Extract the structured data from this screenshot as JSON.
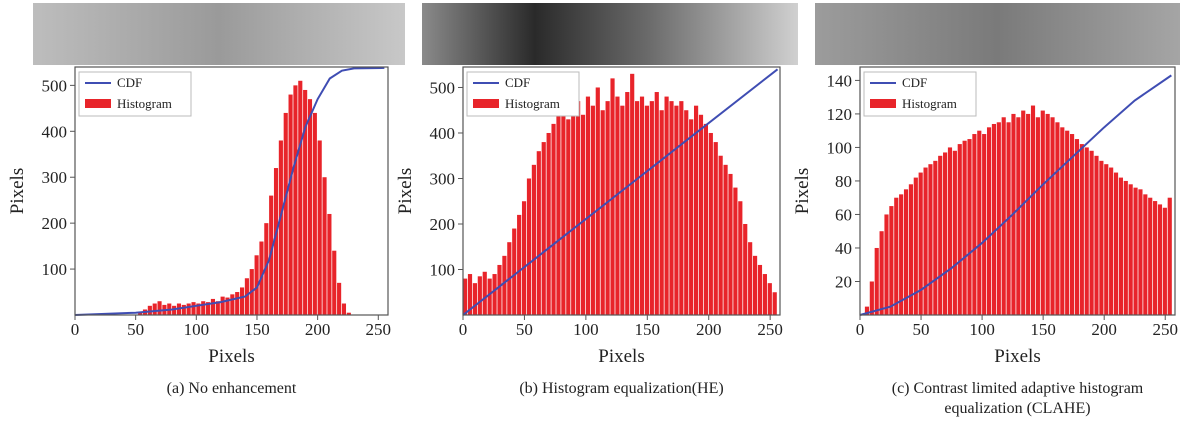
{
  "chart_data": [
    {
      "type": "histogram",
      "caption": [
        "(a) No enhancement"
      ],
      "xlabel": "Pixels",
      "ylabel": "Pixels",
      "xlim": [
        0,
        258
      ],
      "xticks": [
        0,
        50,
        100,
        150,
        200,
        250
      ],
      "ylim": [
        0,
        540
      ],
      "yticks": [
        100,
        200,
        300,
        400,
        500
      ],
      "histogram": {
        "name": "Histogram",
        "color": "#e8242a",
        "bins": [
          0,
          4,
          8,
          12,
          16,
          20,
          24,
          28,
          32,
          36,
          40,
          44,
          48,
          52,
          56,
          60,
          64,
          68,
          72,
          76,
          80,
          84,
          88,
          92,
          96,
          100,
          104,
          108,
          112,
          116,
          120,
          124,
          128,
          132,
          136,
          140,
          144,
          148,
          152,
          156,
          160,
          164,
          168,
          172,
          176,
          180,
          184,
          188,
          192,
          196,
          200,
          204,
          208,
          212,
          216,
          220,
          224,
          228,
          232,
          236,
          240,
          244,
          248,
          252,
          256
        ],
        "counts": [
          0,
          0,
          0,
          0,
          0,
          0,
          0,
          0,
          0,
          0,
          0,
          0,
          0,
          5,
          12,
          20,
          25,
          30,
          22,
          25,
          20,
          25,
          22,
          25,
          28,
          25,
          30,
          28,
          35,
          30,
          40,
          38,
          45,
          50,
          60,
          80,
          100,
          130,
          160,
          200,
          260,
          320,
          380,
          440,
          480,
          500,
          510,
          490,
          470,
          440,
          380,
          300,
          220,
          140,
          70,
          25,
          5,
          0,
          0,
          0,
          0,
          0,
          0,
          0
        ]
      },
      "line": {
        "name": "CDF",
        "color": "#3f4db3",
        "x": [
          0,
          50,
          80,
          100,
          120,
          140,
          150,
          160,
          170,
          180,
          190,
          200,
          210,
          220,
          230,
          255
        ],
        "values": [
          0,
          5,
          12,
          20,
          28,
          40,
          60,
          120,
          220,
          320,
          410,
          470,
          515,
          532,
          537,
          538
        ]
      }
    },
    {
      "type": "histogram",
      "caption": [
        "(b) Histogram equalization(HE)"
      ],
      "xlabel": "Pixels",
      "ylabel": "Pixels",
      "xlim": [
        0,
        258
      ],
      "xticks": [
        0,
        50,
        100,
        150,
        200,
        250
      ],
      "ylim": [
        0,
        545
      ],
      "yticks": [
        100,
        200,
        300,
        400,
        500
      ],
      "histogram": {
        "name": "Histogram",
        "color": "#e8242a",
        "bins": [
          0,
          4,
          8,
          12,
          16,
          20,
          24,
          28,
          32,
          36,
          40,
          44,
          48,
          52,
          56,
          60,
          64,
          68,
          72,
          76,
          80,
          84,
          88,
          92,
          96,
          100,
          104,
          108,
          112,
          116,
          120,
          124,
          128,
          132,
          136,
          140,
          144,
          148,
          152,
          156,
          160,
          164,
          168,
          172,
          176,
          180,
          184,
          188,
          192,
          196,
          200,
          204,
          208,
          212,
          216,
          220,
          224,
          228,
          232,
          236,
          240,
          244,
          248,
          252,
          256
        ],
        "counts": [
          80,
          90,
          70,
          85,
          95,
          80,
          90,
          110,
          130,
          160,
          190,
          220,
          250,
          300,
          330,
          360,
          380,
          400,
          420,
          440,
          450,
          430,
          460,
          470,
          440,
          480,
          460,
          500,
          450,
          470,
          520,
          480,
          460,
          490,
          530,
          470,
          480,
          460,
          470,
          490,
          450,
          480,
          470,
          460,
          470,
          450,
          430,
          460,
          440,
          420,
          400,
          380,
          350,
          330,
          310,
          280,
          250,
          200,
          160,
          130,
          110,
          90,
          70,
          50
        ]
      },
      "line": {
        "name": "CDF",
        "color": "#3f4db3",
        "x": [
          0,
          64,
          128,
          192,
          256
        ],
        "values": [
          0,
          135,
          270,
          405,
          540
        ]
      }
    },
    {
      "type": "histogram",
      "caption": [
        "(c) Contrast limited adaptive histogram",
        "equalization (CLAHE)"
      ],
      "xlabel": "Pixels",
      "ylabel": "Pixels",
      "xlim": [
        0,
        258
      ],
      "xticks": [
        0,
        50,
        100,
        150,
        200,
        250
      ],
      "ylim": [
        0,
        148
      ],
      "yticks": [
        20,
        40,
        60,
        80,
        100,
        120,
        140
      ],
      "histogram": {
        "name": "Histogram",
        "color": "#e8242a",
        "bins": [
          0,
          4,
          8,
          12,
          16,
          20,
          24,
          28,
          32,
          36,
          40,
          44,
          48,
          52,
          56,
          60,
          64,
          68,
          72,
          76,
          80,
          84,
          88,
          92,
          96,
          100,
          104,
          108,
          112,
          116,
          120,
          124,
          128,
          132,
          136,
          140,
          144,
          148,
          152,
          156,
          160,
          164,
          168,
          172,
          176,
          180,
          184,
          188,
          192,
          196,
          200,
          204,
          208,
          212,
          216,
          220,
          224,
          228,
          232,
          236,
          240,
          244,
          248,
          252,
          256
        ],
        "counts": [
          0,
          5,
          20,
          40,
          50,
          60,
          65,
          70,
          72,
          75,
          78,
          82,
          85,
          88,
          90,
          92,
          95,
          97,
          100,
          98,
          102,
          104,
          105,
          108,
          110,
          108,
          112,
          114,
          115,
          118,
          115,
          120,
          118,
          122,
          120,
          125,
          118,
          122,
          120,
          118,
          115,
          112,
          110,
          108,
          105,
          102,
          100,
          98,
          95,
          92,
          90,
          88,
          85,
          82,
          80,
          78,
          76,
          75,
          72,
          70,
          68,
          66,
          64,
          70
        ]
      },
      "line": {
        "name": "CDF",
        "color": "#3f4db3",
        "x": [
          0,
          25,
          50,
          75,
          100,
          125,
          150,
          175,
          200,
          225,
          255
        ],
        "values": [
          0,
          5,
          15,
          28,
          43,
          60,
          78,
          95,
          112,
          128,
          143
        ]
      }
    }
  ]
}
